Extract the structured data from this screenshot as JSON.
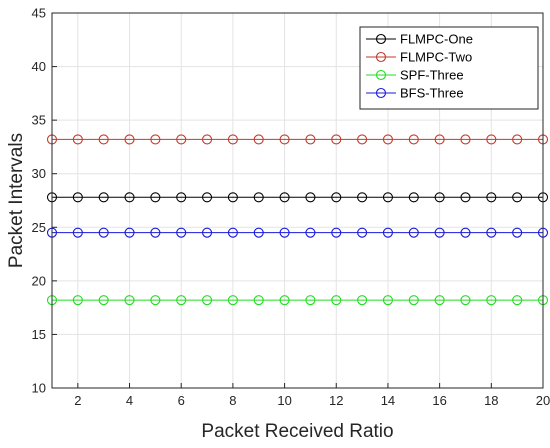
{
  "chart_data": {
    "type": "line",
    "title": "",
    "xlabel": "Packet Received Ratio",
    "ylabel": "Packet Intervals",
    "xlim": [
      1,
      20
    ],
    "ylim": [
      10,
      45
    ],
    "x_ticks": [
      2,
      4,
      6,
      8,
      10,
      12,
      14,
      16,
      18,
      20
    ],
    "y_ticks": [
      10,
      15,
      20,
      25,
      30,
      35,
      40,
      45
    ],
    "grid": true,
    "legend_position": "top-right",
    "x": [
      1,
      2,
      3,
      4,
      5,
      6,
      7,
      8,
      9,
      10,
      11,
      12,
      13,
      14,
      15,
      16,
      17,
      18,
      19,
      20
    ],
    "series": [
      {
        "name": "FLMPC-One",
        "color": "#000000",
        "marker": "circle",
        "values": [
          27.8,
          27.8,
          27.8,
          27.8,
          27.8,
          27.8,
          27.8,
          27.8,
          27.8,
          27.8,
          27.8,
          27.8,
          27.8,
          27.8,
          27.8,
          27.8,
          27.8,
          27.8,
          27.8,
          27.8
        ]
      },
      {
        "name": "FLMPC-Two",
        "color": "#c0392b",
        "marker": "circle",
        "values": [
          33.2,
          33.2,
          33.2,
          33.2,
          33.2,
          33.2,
          33.2,
          33.2,
          33.2,
          33.2,
          33.2,
          33.2,
          33.2,
          33.2,
          33.2,
          33.2,
          33.2,
          33.2,
          33.2,
          33.2
        ]
      },
      {
        "name": "SPF-Three",
        "color": "#22dd22",
        "marker": "circle",
        "values": [
          18.2,
          18.2,
          18.2,
          18.2,
          18.2,
          18.2,
          18.2,
          18.2,
          18.2,
          18.2,
          18.2,
          18.2,
          18.2,
          18.2,
          18.2,
          18.2,
          18.2,
          18.2,
          18.2,
          18.2
        ]
      },
      {
        "name": "BFS-Three",
        "color": "#1a1adc",
        "marker": "circle",
        "values": [
          24.5,
          24.5,
          24.5,
          24.5,
          24.5,
          24.5,
          24.5,
          24.5,
          24.5,
          24.5,
          24.5,
          24.5,
          24.5,
          24.5,
          24.5,
          24.5,
          24.5,
          24.5,
          24.5,
          24.5
        ]
      }
    ]
  }
}
